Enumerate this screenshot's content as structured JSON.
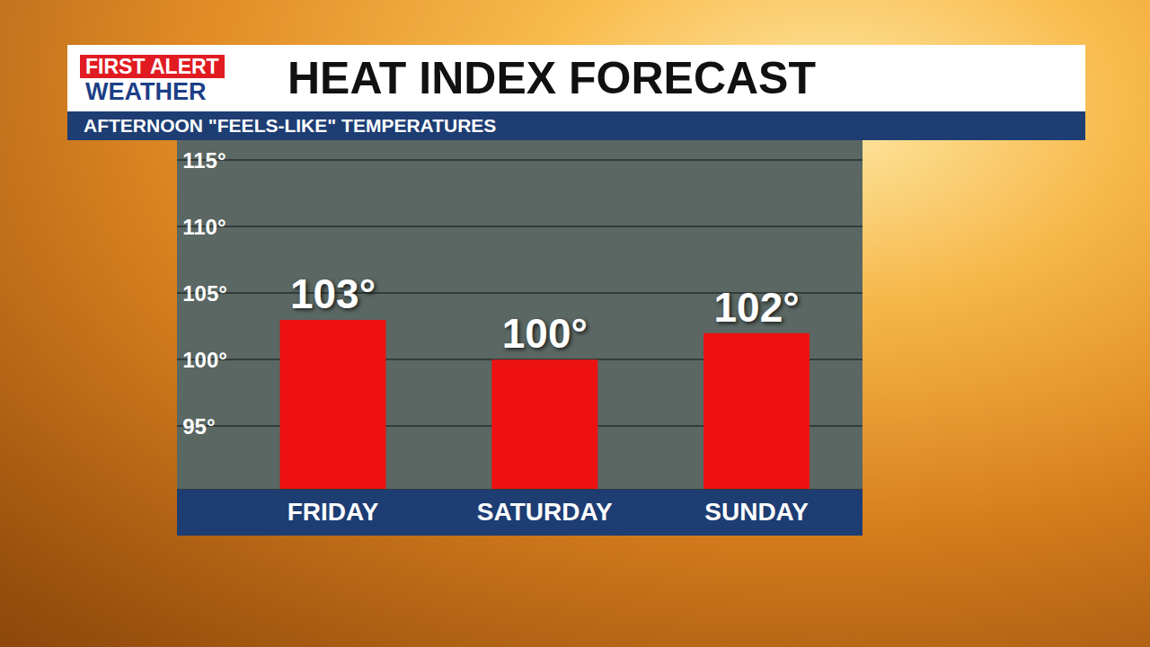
{
  "chart_data": {
    "type": "bar",
    "title": "HEAT INDEX FORECAST",
    "subtitle": "AFTERNOON \"FEELS-LIKE\" TEMPERATURES",
    "annotations": [
      "FIRST ALERT",
      "WEATHER"
    ],
    "categories": [
      "FRIDAY",
      "SATURDAY",
      "SUNDAY"
    ],
    "values": [
      103,
      100,
      102
    ],
    "value_labels": [
      "103°",
      "100°",
      "102°"
    ],
    "data_labels": true,
    "color": "#ee1111",
    "ylim": [
      90.3,
      116.5
    ],
    "yticks": [
      {
        "value": 95,
        "label": "95°"
      },
      {
        "value": 100,
        "label": "100°"
      },
      {
        "value": 105,
        "label": "105°"
      },
      {
        "value": 110,
        "label": "110°"
      },
      {
        "value": 115,
        "label": "115°"
      }
    ],
    "grid": true
  }
}
